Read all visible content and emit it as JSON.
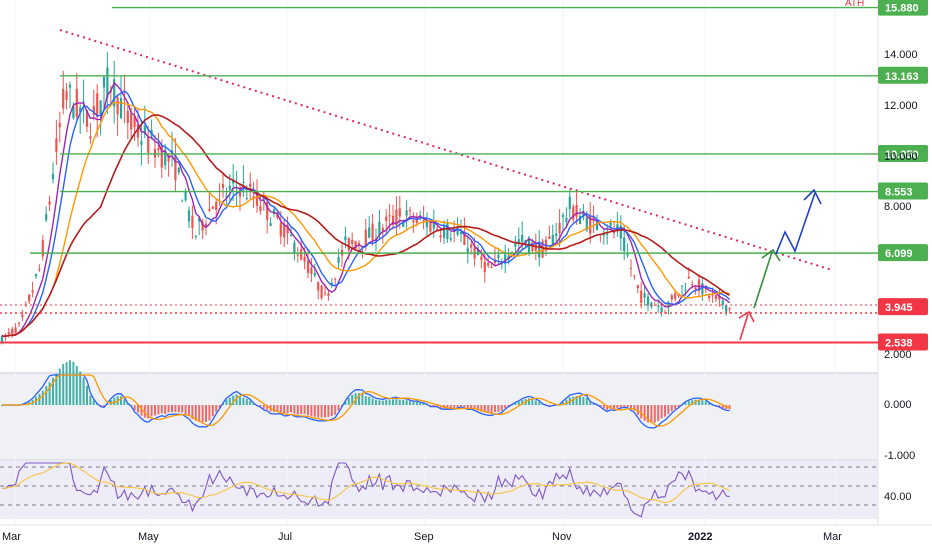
{
  "chart_data": {
    "type": "line",
    "price_axis": {
      "ticks": [
        "14.000",
        "12.000",
        "10.000",
        "8.000",
        "2.000"
      ],
      "ylim": [
        1.8,
        16.0
      ]
    },
    "time_axis": {
      "labels": [
        "Mar",
        "May",
        "Jul",
        "Sep",
        "Nov",
        "2022",
        "Mar"
      ]
    },
    "horizontal_levels": [
      {
        "label": "15.880",
        "value": 15.88,
        "color": "#4caf50"
      },
      {
        "label": "13.163",
        "value": 13.163,
        "color": "#4caf50"
      },
      {
        "label": "10.050",
        "value": 10.05,
        "color": "#4caf50"
      },
      {
        "label": "8.553",
        "value": 8.553,
        "color": "#4caf50"
      },
      {
        "label": "6.099",
        "value": 6.099,
        "color": "#4caf50"
      },
      {
        "label": "3.945",
        "value": 3.945,
        "color": "#f23645"
      },
      {
        "label": "2.538",
        "value": 2.538,
        "color": "#f23645"
      }
    ],
    "macd": {
      "ticks": [
        "0.000",
        "-1.000"
      ]
    },
    "rsi": {
      "ticks": [
        "40.00"
      ]
    },
    "header_fragment": "ATH"
  }
}
